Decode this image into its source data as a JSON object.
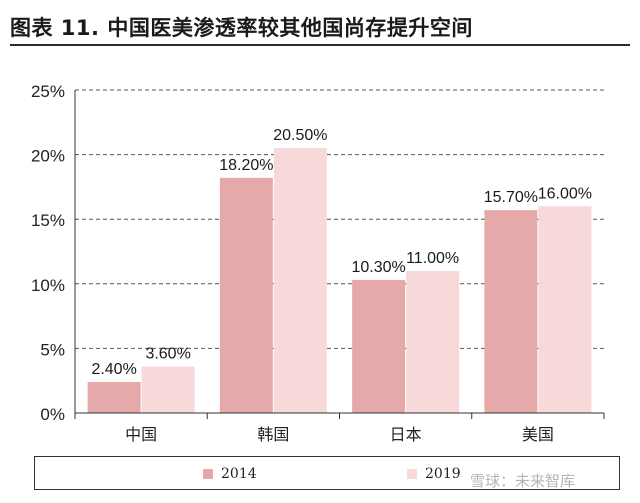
{
  "title": "图表 11. 中国医美渗透率较其他国尚存提升空间",
  "colors": {
    "s2014": "#e6a9a9",
    "s2019": "#f7d9d9"
  },
  "watermark": "雪球：未来智库",
  "chart_data": {
    "type": "bar",
    "title": "",
    "xlabel": "",
    "ylabel": "",
    "categories": [
      "中国",
      "韩国",
      "日本",
      "美国"
    ],
    "series": [
      {
        "name": "2014",
        "values": [
          2.4,
          18.2,
          10.3,
          15.7
        ],
        "labels": [
          "2.40%",
          "18.20%",
          "10.30%",
          "15.70%"
        ]
      },
      {
        "name": "2019",
        "values": [
          3.6,
          20.5,
          11.0,
          16.0
        ],
        "labels": [
          "3.60%",
          "20.50%",
          "11.00%",
          "16.00%"
        ]
      }
    ],
    "ylim": [
      0,
      25
    ],
    "yticks": [
      0,
      5,
      10,
      15,
      20,
      25
    ],
    "ytick_labels": [
      "0%",
      "5%",
      "10%",
      "15%",
      "20%",
      "25%"
    ],
    "grid": true,
    "legend_position": "bottom"
  }
}
